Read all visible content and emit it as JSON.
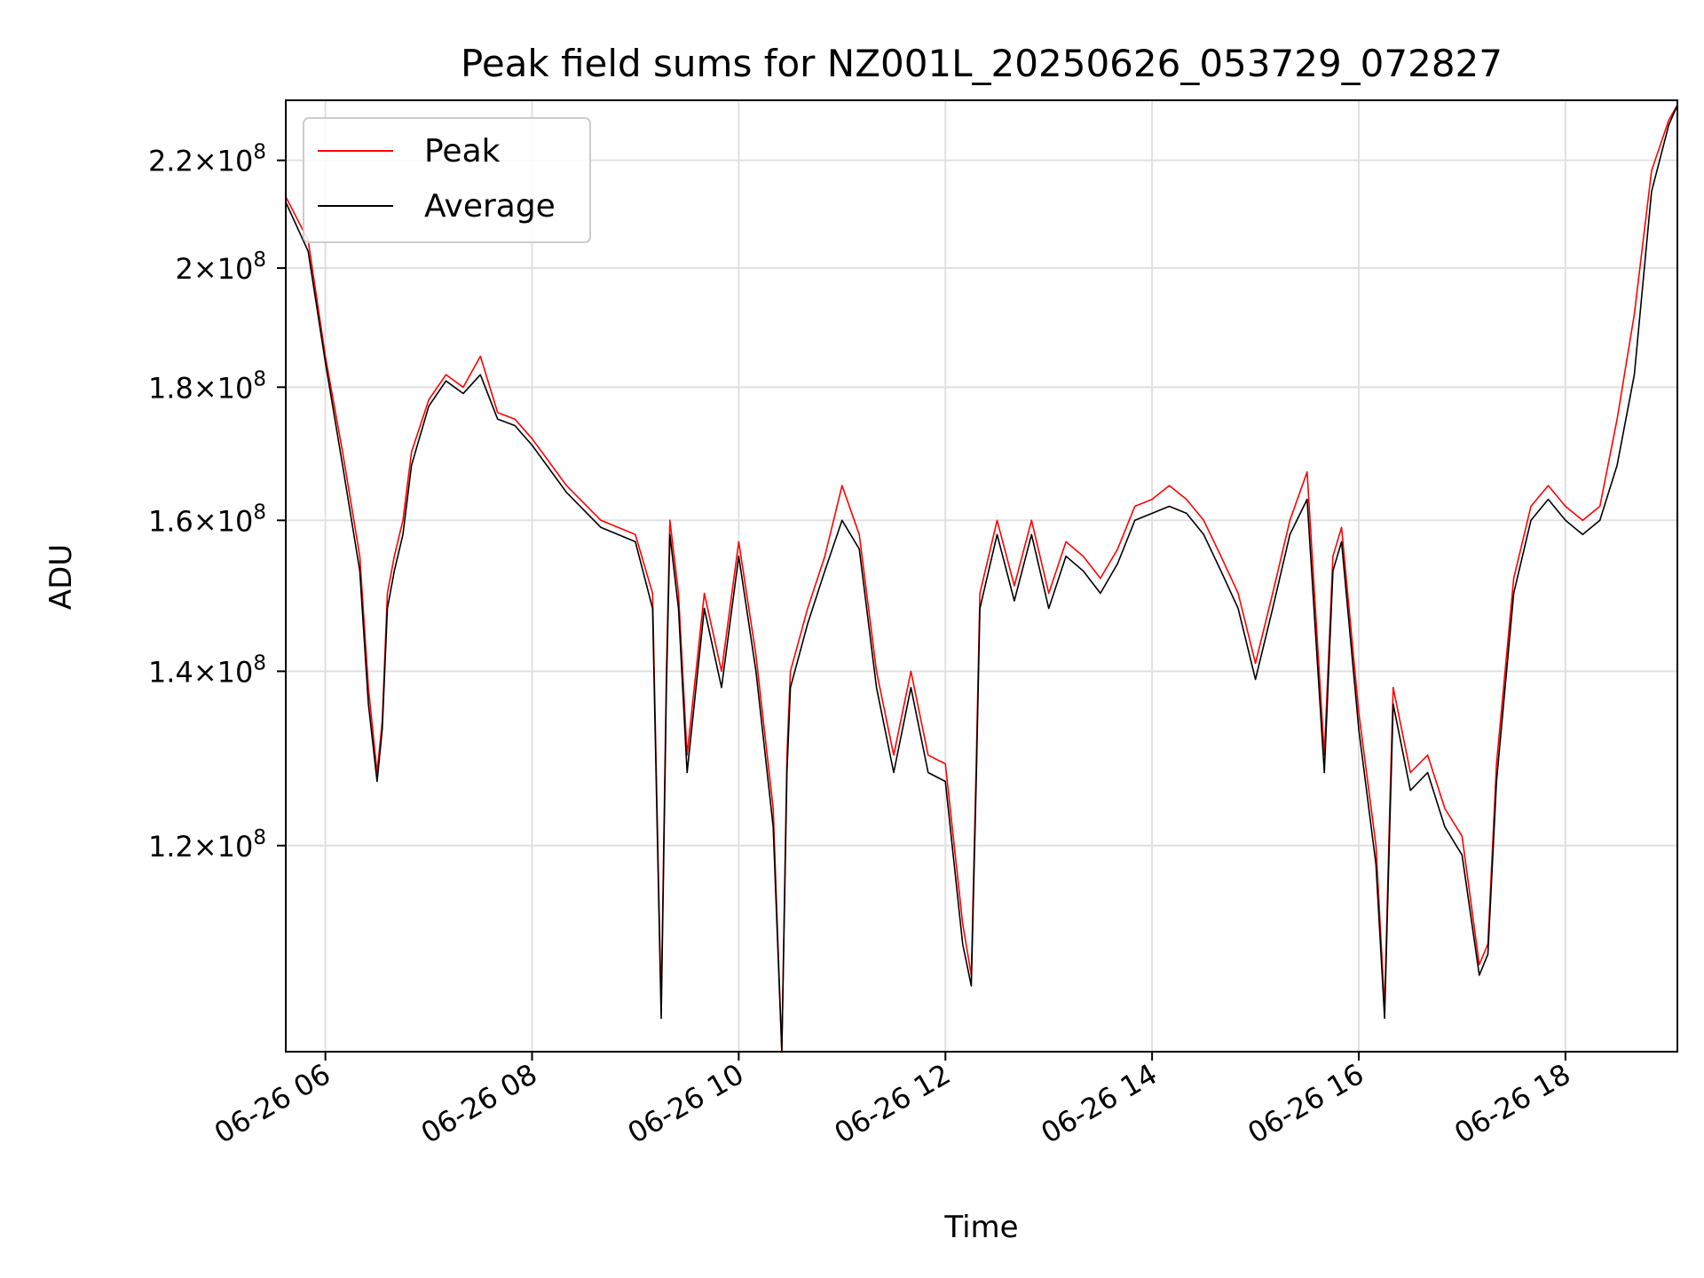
{
  "chart_data": {
    "type": "line",
    "title": "Peak field sums for NZ001L_20250626_053729_072827",
    "xlabel": "Time",
    "ylabel": "ADU",
    "yscale": "log",
    "grid": true,
    "legend_position": "top-left",
    "xlim": [
      "06-26 05:37",
      "06-26 19:05"
    ],
    "ylim": [
      100000000,
      232000000
    ],
    "x_ticks": [
      "06-26 06",
      "06-26 08",
      "06-26 10",
      "06-26 12",
      "06-26 14",
      "06-26 16",
      "06-26 18"
    ],
    "y_ticks": [
      {
        "value": 120000000,
        "mantissa": "1.2",
        "exp": "8"
      },
      {
        "value": 140000000,
        "mantissa": "1.4",
        "exp": "8"
      },
      {
        "value": 160000000,
        "mantissa": "1.6",
        "exp": "8"
      },
      {
        "value": 180000000,
        "mantissa": "1.8",
        "exp": "8"
      },
      {
        "value": 200000000,
        "mantissa": "2",
        "exp": "8"
      },
      {
        "value": 220000000,
        "mantissa": "2.2",
        "exp": "8"
      }
    ],
    "x": [
      "05:37",
      "05:50",
      "06:00",
      "06:10",
      "06:20",
      "06:25",
      "06:30",
      "06:33",
      "06:36",
      "06:40",
      "06:45",
      "06:50",
      "07:00",
      "07:10",
      "07:20",
      "07:30",
      "07:40",
      "07:50",
      "08:00",
      "08:20",
      "08:40",
      "09:00",
      "09:10",
      "09:15",
      "09:18",
      "09:20",
      "09:25",
      "09:30",
      "09:40",
      "09:50",
      "10:00",
      "10:10",
      "10:20",
      "10:25",
      "10:28",
      "10:30",
      "10:40",
      "10:50",
      "11:00",
      "11:10",
      "11:20",
      "11:30",
      "11:40",
      "11:50",
      "12:00",
      "12:10",
      "12:15",
      "12:18",
      "12:20",
      "12:30",
      "12:40",
      "12:50",
      "13:00",
      "13:10",
      "13:20",
      "13:30",
      "13:40",
      "13:50",
      "14:00",
      "14:10",
      "14:20",
      "14:30",
      "14:40",
      "14:50",
      "15:00",
      "15:10",
      "15:20",
      "15:30",
      "15:40",
      "15:45",
      "15:50",
      "16:00",
      "16:10",
      "16:15",
      "16:18",
      "16:20",
      "16:30",
      "16:40",
      "16:50",
      "17:00",
      "17:10",
      "17:15",
      "17:20",
      "17:30",
      "17:40",
      "17:50",
      "18:00",
      "18:10",
      "18:20",
      "18:30",
      "18:40",
      "18:50",
      "19:00",
      "19:05"
    ],
    "series": [
      {
        "name": "Peak",
        "color": "#ff0000",
        "values": [
          213,
          205,
          185,
          170,
          155,
          138,
          128,
          134,
          150,
          155,
          160,
          170,
          178,
          182,
          180,
          185,
          176,
          175,
          172,
          165,
          160,
          158,
          150,
          104,
          140,
          160,
          150,
          130,
          150,
          140,
          157,
          142,
          124,
          100,
          130,
          140,
          148,
          155,
          165,
          158,
          140,
          130,
          140,
          130,
          129,
          112,
          107,
          130,
          150,
          160,
          151,
          160,
          150,
          157,
          155,
          152,
          156,
          162,
          163,
          165,
          163,
          160,
          155,
          150,
          141,
          150,
          160,
          167,
          130,
          155,
          159,
          135,
          120,
          104,
          124,
          138,
          128,
          130,
          124,
          121,
          108,
          110,
          129,
          152,
          162,
          165,
          162,
          160,
          162,
          175,
          192,
          218,
          228,
          231
        ]
      },
      {
        "name": "Average",
        "color": "#000000",
        "values": [
          212,
          203,
          184,
          168,
          153,
          136,
          127,
          133,
          148,
          153,
          158,
          168,
          177,
          181,
          179,
          182,
          175,
          174,
          171,
          164,
          159,
          157,
          148,
          103,
          138,
          158,
          148,
          128,
          148,
          138,
          155,
          140,
          122,
          99,
          128,
          138,
          146,
          153,
          160,
          156,
          138,
          128,
          138,
          128,
          127,
          110,
          106,
          128,
          148,
          158,
          149,
          158,
          148,
          155,
          153,
          150,
          154,
          160,
          161,
          162,
          161,
          158,
          153,
          148,
          139,
          148,
          158,
          163,
          128,
          153,
          157,
          133,
          118,
          103,
          122,
          136,
          126,
          128,
          122,
          119,
          107,
          109,
          127,
          150,
          160,
          163,
          160,
          158,
          160,
          168,
          182,
          214,
          227,
          231
        ]
      }
    ]
  }
}
